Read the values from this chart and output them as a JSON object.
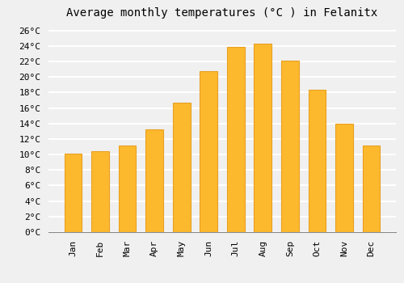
{
  "title": "Average monthly temperatures (°C ) in Felanitx",
  "months": [
    "Jan",
    "Feb",
    "Mar",
    "Apr",
    "May",
    "Jun",
    "Jul",
    "Aug",
    "Sep",
    "Oct",
    "Nov",
    "Dec"
  ],
  "temperatures": [
    10.1,
    10.4,
    11.2,
    13.2,
    16.7,
    20.7,
    23.9,
    24.3,
    22.1,
    18.3,
    14.0,
    11.2
  ],
  "bar_color": "#FDB92E",
  "bar_edge_color": "#E8A020",
  "ylim": [
    0,
    27
  ],
  "yticks": [
    0,
    2,
    4,
    6,
    8,
    10,
    12,
    14,
    16,
    18,
    20,
    22,
    24,
    26
  ],
  "background_color": "#f0f0f0",
  "grid_color": "#ffffff",
  "title_fontsize": 10,
  "tick_fontsize": 8,
  "font_family": "monospace"
}
